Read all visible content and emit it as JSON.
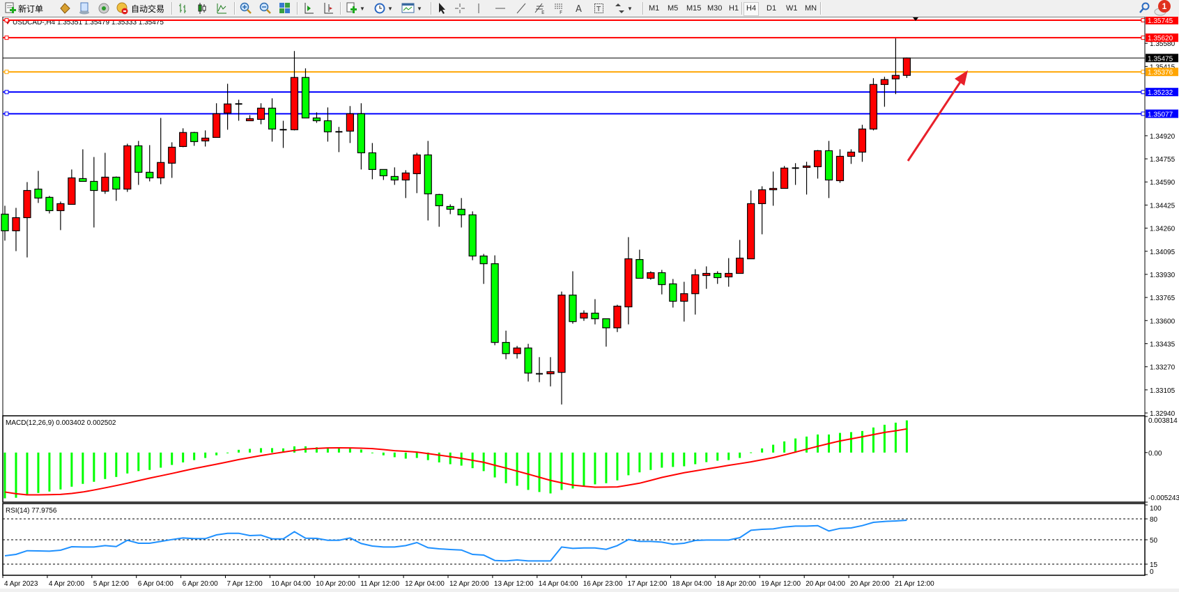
{
  "toolbar": {
    "new_order": "新订单",
    "auto_trading": "自动交易",
    "timeframes": [
      "M1",
      "M5",
      "M15",
      "M30",
      "H1",
      "H4",
      "D1",
      "W1",
      "MN"
    ],
    "active_timeframe": "H4",
    "notification_count": "1",
    "icons": [
      "new-order-icon",
      "expert-icon",
      "navigator-icon",
      "signals-icon",
      "auto-trading-icon",
      "bar-chart-icon",
      "candlestick-icon",
      "line-chart-icon",
      "zoom-in-icon",
      "zoom-out-icon",
      "tile-windows-icon",
      "auto-scroll-icon",
      "chart-shift-icon",
      "indicators-icon",
      "periods-icon",
      "templates-icon",
      "cursor-icon",
      "crosshair-icon",
      "vertical-line-icon",
      "horizontal-line-icon",
      "trendline-icon",
      "fibonacci-icon",
      "fibo-fan-icon",
      "text-icon",
      "text-label-icon",
      "arrows-icon",
      "search-icon",
      "notification-icon"
    ]
  },
  "chart_data": [
    {
      "type": "candlestick",
      "symbol": "USDCAD-,H4",
      "ohlc_header": "1.35351 1.35479 1.35333 1.35475",
      "ylim": [
        1.3292,
        1.3577
      ],
      "bull_color": "#ff0000",
      "bear_color": "#00ff00",
      "y_ticks": [
        "1.35580",
        "1.35415",
        "1.34920",
        "1.34755",
        "1.34590",
        "1.34425",
        "1.34260",
        "1.34095",
        "1.33930",
        "1.33765",
        "1.33600",
        "1.33435",
        "1.33270",
        "1.33105",
        "1.32940"
      ],
      "levels": [
        {
          "price": 1.35745,
          "label": "1.35745",
          "color": "#ff0000"
        },
        {
          "price": 1.3562,
          "label": "1.35620",
          "color": "#ff0000"
        },
        {
          "price": 1.35376,
          "label": "1.35376",
          "color": "#ffa500"
        },
        {
          "price": 1.35232,
          "label": "1.35232",
          "color": "#0000ff"
        },
        {
          "price": 1.35077,
          "label": "1.35077",
          "color": "#0000ff"
        }
      ],
      "current_price": {
        "price": 1.35475,
        "label": "1.35475",
        "color": "#000000"
      },
      "candles": [
        [
          1.3436,
          1.3442,
          1.34171,
          1.34241
        ],
        [
          1.34241,
          1.34405,
          1.34096,
          1.34335
        ],
        [
          1.34335,
          1.34589,
          1.34051,
          1.34529
        ],
        [
          1.34539,
          1.34669,
          1.3444,
          1.34475
        ],
        [
          1.3448,
          1.3449,
          1.34365,
          1.34385
        ],
        [
          1.34385,
          1.3445,
          1.34246,
          1.34435
        ],
        [
          1.3443,
          1.34679,
          1.3443,
          1.34619
        ],
        [
          1.34614,
          1.34823,
          1.34594,
          1.34594
        ],
        [
          1.34594,
          1.34768,
          1.34265,
          1.34529
        ],
        [
          1.34524,
          1.34798,
          1.34505,
          1.34624
        ],
        [
          1.34624,
          1.34629,
          1.34455,
          1.34539
        ],
        [
          1.34539,
          1.34863,
          1.34519,
          1.34848
        ],
        [
          1.34848,
          1.34883,
          1.34569,
          1.34659
        ],
        [
          1.34659,
          1.34853,
          1.34594,
          1.34619
        ],
        [
          1.34619,
          1.35047,
          1.34574,
          1.34729
        ],
        [
          1.34724,
          1.34873,
          1.34619,
          1.34838
        ],
        [
          1.34843,
          1.34973,
          1.34838,
          1.34943
        ],
        [
          1.34943,
          1.34948,
          1.34848,
          1.34878
        ],
        [
          1.34883,
          1.34958,
          1.34843,
          1.34903
        ],
        [
          1.34908,
          1.35152,
          1.34908,
          1.35077
        ],
        [
          1.35082,
          1.35291,
          1.34963,
          1.35147
        ],
        [
          1.35147,
          1.35177,
          1.35027,
          1.35147
        ],
        [
          1.35027,
          1.35067,
          1.35027,
          1.35042
        ],
        [
          1.35037,
          1.35152,
          1.35002,
          1.35117
        ],
        [
          1.35117,
          1.35187,
          1.34878,
          1.34968
        ],
        [
          1.34963,
          1.35027,
          1.34833,
          1.34963
        ],
        [
          1.34963,
          1.35525,
          1.34958,
          1.35336
        ],
        [
          1.35336,
          1.35401,
          1.35047,
          1.35047
        ],
        [
          1.35047,
          1.35087,
          1.35012,
          1.35027
        ],
        [
          1.35027,
          1.35122,
          1.34878,
          1.34948
        ],
        [
          1.34948,
          1.34983,
          1.34803,
          1.34948
        ],
        [
          1.34953,
          1.35132,
          1.34868,
          1.35077
        ],
        [
          1.35077,
          1.35152,
          1.34679,
          1.34798
        ],
        [
          1.34798,
          1.34868,
          1.34609,
          1.34679
        ],
        [
          1.34679,
          1.34679,
          1.34604,
          1.34634
        ],
        [
          1.34629,
          1.34694,
          1.34569,
          1.34604
        ],
        [
          1.34604,
          1.34674,
          1.34475,
          1.34654
        ],
        [
          1.34649,
          1.34798,
          1.3451,
          1.34783
        ],
        [
          1.34783,
          1.34883,
          1.34315,
          1.34505
        ],
        [
          1.345,
          1.34505,
          1.3427,
          1.3442
        ],
        [
          1.34415,
          1.3443,
          1.3436,
          1.34395
        ],
        [
          1.34395,
          1.34475,
          1.34265,
          1.34355
        ],
        [
          1.34355,
          1.3438,
          1.34031,
          1.34061
        ],
        [
          1.34061,
          1.34076,
          1.33862,
          1.34006
        ],
        [
          1.34006,
          1.34066,
          1.33424,
          1.33444
        ],
        [
          1.33444,
          1.33528,
          1.33324,
          1.33364
        ],
        [
          1.33364,
          1.33419,
          1.33329,
          1.33404
        ],
        [
          1.33404,
          1.33434,
          1.33165,
          1.33225
        ],
        [
          1.3322,
          1.33339,
          1.3316,
          1.3322
        ],
        [
          1.3322,
          1.33339,
          1.3313,
          1.33235
        ],
        [
          1.3323,
          1.33807,
          1.33001,
          1.33782
        ],
        [
          1.33782,
          1.33952,
          1.33578,
          1.33593
        ],
        [
          1.33618,
          1.33673,
          1.33598,
          1.33653
        ],
        [
          1.33653,
          1.33753,
          1.33573,
          1.33613
        ],
        [
          1.33613,
          1.33613,
          1.33414,
          1.33548
        ],
        [
          1.33548,
          1.33713,
          1.33518,
          1.33703
        ],
        [
          1.33698,
          1.34196,
          1.33573,
          1.34041
        ],
        [
          1.34036,
          1.34106,
          1.33902,
          1.33902
        ],
        [
          1.33902,
          1.33952,
          1.33892,
          1.33942
        ],
        [
          1.33942,
          1.33962,
          1.33787,
          1.33857
        ],
        [
          1.33862,
          1.33897,
          1.33693,
          1.33738
        ],
        [
          1.33738,
          1.33877,
          1.33593,
          1.33792
        ],
        [
          1.33792,
          1.33967,
          1.33643,
          1.33927
        ],
        [
          1.33922,
          1.33987,
          1.33827,
          1.33937
        ],
        [
          1.33937,
          1.33952,
          1.33862,
          1.33907
        ],
        [
          1.33912,
          1.34046,
          1.33842,
          1.33937
        ],
        [
          1.33937,
          1.34176,
          1.33937,
          1.34046
        ],
        [
          1.34041,
          1.34529,
          1.34041,
          1.34435
        ],
        [
          1.34435,
          1.34559,
          1.34216,
          1.34534
        ],
        [
          1.34534,
          1.34664,
          1.3442,
          1.34544
        ],
        [
          1.34544,
          1.34704,
          1.34544,
          1.34689
        ],
        [
          1.34689,
          1.34724,
          1.34569,
          1.34689
        ],
        [
          1.34694,
          1.34734,
          1.345,
          1.34704
        ],
        [
          1.34699,
          1.34818,
          1.34614,
          1.34813
        ],
        [
          1.34813,
          1.34883,
          1.34475,
          1.34604
        ],
        [
          1.34599,
          1.34823,
          1.34584,
          1.34773
        ],
        [
          1.34773,
          1.34823,
          1.34719,
          1.34803
        ],
        [
          1.34803,
          1.34998,
          1.34734,
          1.34968
        ],
        [
          1.34968,
          1.35331,
          1.34958,
          1.35286
        ],
        [
          1.35286,
          1.35341,
          1.35127,
          1.35321
        ],
        [
          1.35326,
          1.35615,
          1.35217,
          1.35351
        ],
        [
          1.35351,
          1.35479,
          1.35333,
          1.35475
        ]
      ]
    },
    {
      "type": "bar+line",
      "title": "MACD(12,26,9) 0.003402 0.002502",
      "ylim": [
        -0.005243,
        0.003814
      ],
      "y_ticks": [
        "0.003814",
        "0.00",
        "-0.005243"
      ],
      "histogram_color": "#00ff00",
      "signal_color": "#ff0000",
      "histogram": [
        -0.00484,
        -0.00478,
        -0.00454,
        -0.00427,
        -0.00412,
        -0.0039,
        -0.00361,
        -0.00331,
        -0.00309,
        -0.0028,
        -0.00258,
        -0.00221,
        -0.00196,
        -0.00184,
        -0.0016,
        -0.00131,
        -0.00104,
        -0.0008,
        -0.00057,
        -0.00029,
        -2e-05,
        0.00029,
        0.00039,
        0.00047,
        0.00047,
        0.00044,
        0.00066,
        0.00066,
        0.00056,
        0.00051,
        0.00051,
        0.00049,
        0.00032,
        0.0,
        -0.00029,
        -0.00049,
        -0.00064,
        -0.00057,
        -0.0008,
        -0.00104,
        -0.00123,
        -0.00138,
        -0.00165,
        -0.00196,
        -0.00263,
        -0.00324,
        -0.00351,
        -0.00395,
        -0.00417,
        -0.00432,
        -0.00395,
        -0.0038,
        -0.00356,
        -0.00336,
        -0.00324,
        -0.00294,
        -0.0024,
        -0.00209,
        -0.00184,
        -0.0016,
        -0.00152,
        -0.00145,
        -0.00123,
        -0.00101,
        -0.00086,
        -0.00079,
        -0.00057,
        2e-05,
        0.00044,
        0.00083,
        0.00118,
        0.00149,
        0.00169,
        0.00191,
        0.00191,
        0.00208,
        0.00216,
        0.00228,
        0.00265,
        0.00294,
        0.00316,
        0.003402
      ],
      "signal": [
        -0.00417,
        -0.00435,
        -0.00447,
        -0.00447,
        -0.00445,
        -0.00442,
        -0.00432,
        -0.00417,
        -0.00396,
        -0.00373,
        -0.00349,
        -0.00324,
        -0.00297,
        -0.0027,
        -0.00246,
        -0.00221,
        -0.00195,
        -0.00169,
        -0.00146,
        -0.00123,
        -0.00099,
        -0.00074,
        -0.00053,
        -0.00032,
        -0.00013,
        5e-05,
        0.00022,
        0.00037,
        0.00044,
        0.00049,
        0.0005,
        0.00049,
        0.00046,
        0.00042,
        0.00032,
        0.0002,
        0.00013,
        5e-05,
        -0.00011,
        -0.00027,
        -0.00044,
        -0.00061,
        -0.00082,
        -0.00103,
        -0.00134,
        -0.00164,
        -0.00196,
        -0.00228,
        -0.00261,
        -0.00294,
        -0.0032,
        -0.00344,
        -0.00356,
        -0.00366,
        -0.00365,
        -0.00363,
        -0.00344,
        -0.00324,
        -0.00294,
        -0.00263,
        -0.00238,
        -0.00213,
        -0.00194,
        -0.00174,
        -0.00155,
        -0.00135,
        -0.00117,
        -0.00098,
        -0.00076,
        -0.00054,
        -0.00025,
        5e-05,
        0.00036,
        0.00066,
        0.00095,
        0.00123,
        0.00145,
        0.00167,
        0.0019,
        0.00213,
        0.0023,
        0.002502
      ]
    },
    {
      "type": "line",
      "title": "RSI(14) 77.9756",
      "ylim": [
        0,
        100
      ],
      "levels": [
        80,
        50,
        15
      ],
      "y_ticks": [
        "100",
        "80",
        "50",
        "15",
        "0"
      ],
      "color": "#1e90ff",
      "values": [
        27,
        29,
        34.3,
        34,
        33.6,
        35,
        40,
        39.6,
        39.6,
        41.6,
        40.3,
        49.3,
        45,
        45,
        47.6,
        50.3,
        52.6,
        51.6,
        51.6,
        57,
        59.3,
        59.3,
        56,
        56.6,
        51.3,
        51.3,
        61.6,
        52.3,
        52,
        49.3,
        49.3,
        52.6,
        44.6,
        41,
        39.6,
        39.6,
        41.6,
        46,
        38.6,
        37,
        36,
        35.3,
        29,
        28,
        20.3,
        19.6,
        21,
        19.6,
        19.6,
        19.6,
        39.6,
        37.6,
        38.3,
        38.3,
        36.3,
        41.6,
        50.3,
        47.6,
        47.6,
        46.6,
        43.6,
        45,
        49,
        49.6,
        49.6,
        49.6,
        53,
        63.6,
        65,
        65.6,
        68.3,
        69.6,
        69.6,
        70.3,
        62.6,
        66.3,
        67,
        70.3,
        75,
        76.3,
        77,
        77.9756
      ]
    }
  ],
  "time_axis": {
    "labels": [
      "4 Apr 2023",
      "4 Apr 20:00",
      "5 Apr 12:00",
      "6 Apr 04:00",
      "6 Apr 20:00",
      "7 Apr 12:00",
      "10 Apr 04:00",
      "10 Apr 20:00",
      "11 Apr 12:00",
      "12 Apr 04:00",
      "12 Apr 20:00",
      "13 Apr 12:00",
      "14 Apr 04:00",
      "16 Apr 23:00",
      "17 Apr 12:00",
      "18 Apr 04:00",
      "18 Apr 20:00",
      "19 Apr 12:00",
      "20 Apr 04:00",
      "20 Apr 20:00",
      "21 Apr 12:00"
    ]
  }
}
